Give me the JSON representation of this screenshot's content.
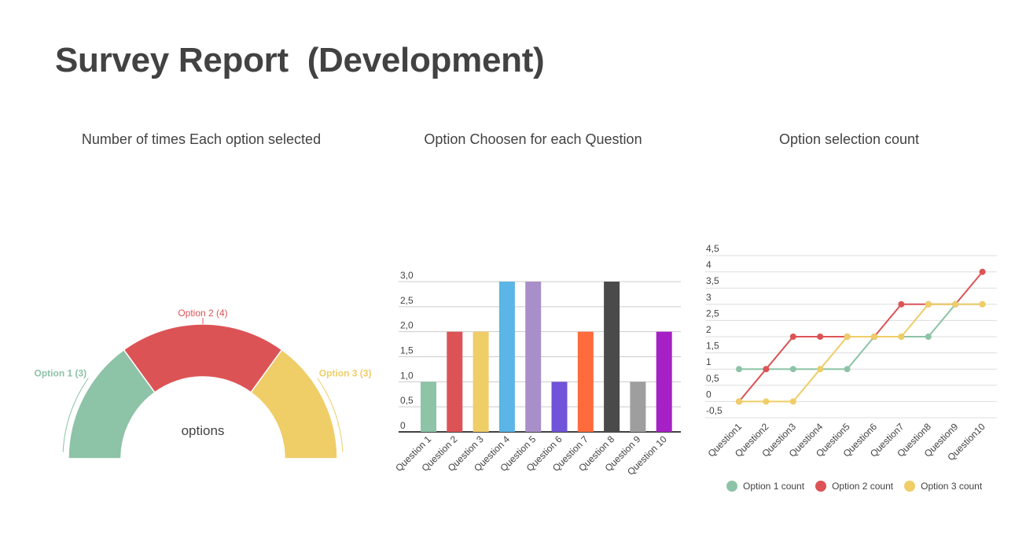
{
  "page": {
    "title": "Survey Report  (Development)"
  },
  "colors": {
    "green": "#8dc3a7",
    "red": "#dc5356",
    "yellow": "#efcd67",
    "text": "#424242",
    "grid": "#cccccc"
  },
  "chart_data": [
    {
      "type": "pie",
      "title": "Number of times Each option selected",
      "center_label": "options",
      "slices": [
        {
          "label": "Option 1 (3)",
          "name": "Option 1",
          "value": 3,
          "color": "#8dc3a7"
        },
        {
          "label": "Option 2 (4)",
          "name": "Option 2",
          "value": 4,
          "color": "#dc5356"
        },
        {
          "label": "Option 3 (3)",
          "name": "Option 3",
          "value": 3,
          "color": "#efcd67"
        }
      ]
    },
    {
      "type": "bar",
      "title": "Option Choosen for each Question",
      "categories": [
        "Question 1",
        "Question 2",
        "Question 3",
        "Question 4",
        "Question 5",
        "Question 6",
        "Question 7",
        "Question 8",
        "Question 9",
        "Question 10"
      ],
      "values": [
        1,
        2,
        2,
        3,
        3,
        1,
        2,
        3,
        1,
        2
      ],
      "colors": [
        "#8dc3a7",
        "#dc5356",
        "#efcd67",
        "#5bb5e6",
        "#a98fc9",
        "#7053d9",
        "#ff6b3b",
        "#4a4a4a",
        "#9e9e9e",
        "#a621c5"
      ],
      "yticks": [
        "0",
        "0,5",
        "1,0",
        "1,5",
        "2,0",
        "2,5",
        "3,0"
      ],
      "ylim": [
        0,
        3
      ]
    },
    {
      "type": "line",
      "title": "Option selection count",
      "categories": [
        "Question1",
        "Question2",
        "Question3",
        "Question4",
        "Question5",
        "Question6",
        "Question7",
        "Question8",
        "Question9",
        "Question10"
      ],
      "series": [
        {
          "name": "Option 1 count",
          "values": [
            1,
            1,
            1,
            1,
            1,
            2,
            2,
            2,
            3,
            3
          ],
          "color": "#8dc3a7"
        },
        {
          "name": "Option 2 count",
          "values": [
            0,
            1,
            2,
            2,
            2,
            2,
            3,
            3,
            3,
            4
          ],
          "color": "#dc5356"
        },
        {
          "name": "Option 3 count",
          "values": [
            0,
            0,
            0,
            1,
            2,
            2,
            2,
            3,
            3,
            3
          ],
          "color": "#efcd67"
        }
      ],
      "yticks": [
        "-0,5",
        "0",
        "0,5",
        "1",
        "1,5",
        "2",
        "2,5",
        "3",
        "3,5",
        "4",
        "4,5"
      ],
      "ylim": [
        -0.5,
        4.5
      ],
      "legend": "bottom"
    }
  ]
}
